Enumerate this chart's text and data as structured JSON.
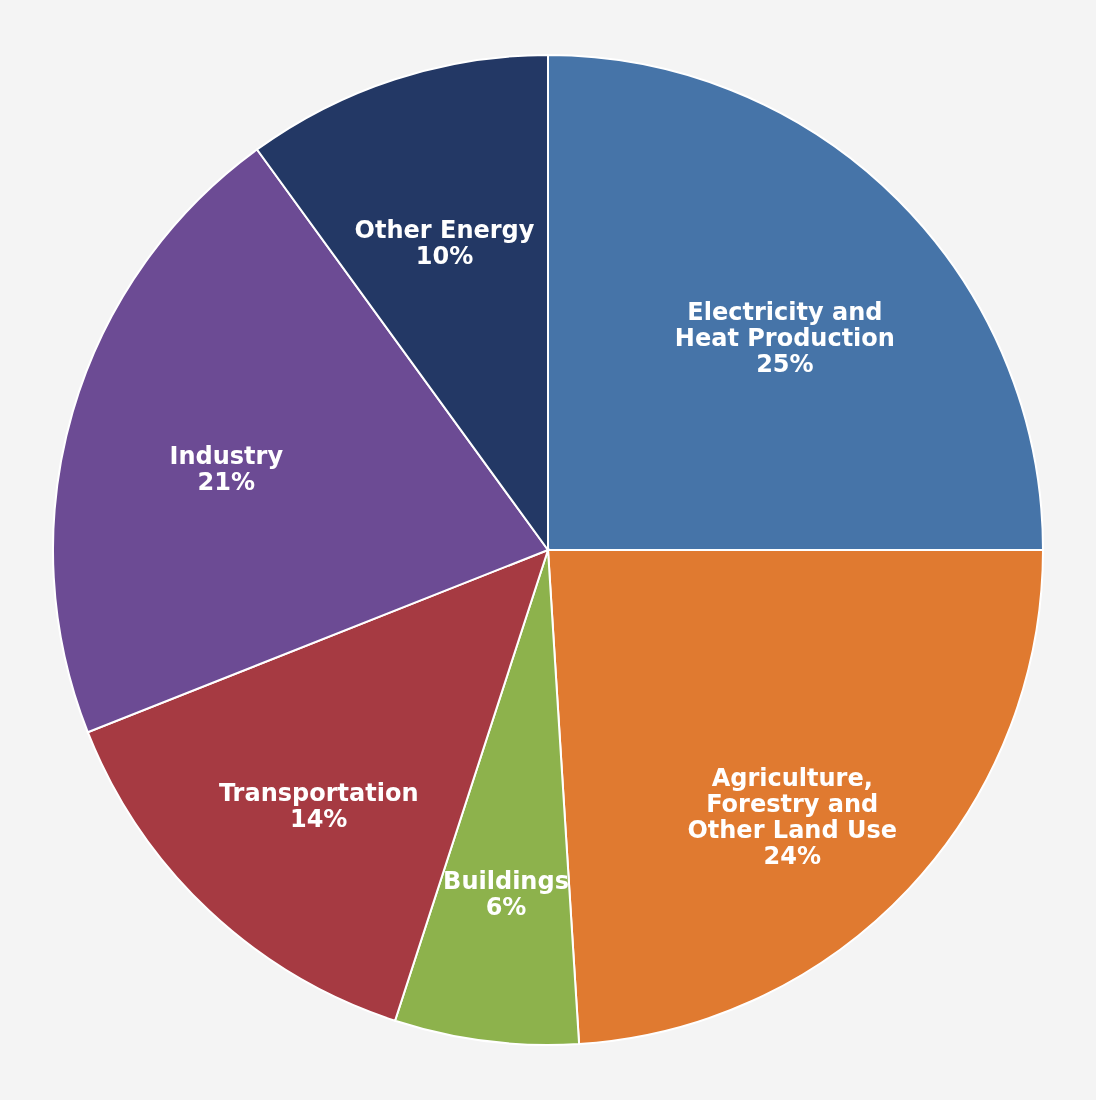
{
  "chart_data": {
    "type": "pie",
    "categories": [
      "Electricity and Heat Production",
      "Agriculture, Forestry and Other Land Use",
      "Buildings",
      "Transportation",
      "Industry",
      "Other Energy"
    ],
    "values": [
      25,
      24,
      6,
      14,
      21,
      10
    ],
    "colors": [
      "#4674a8",
      "#e07a30",
      "#8db24c",
      "#a63a42",
      "#6c4b94",
      "#233865"
    ],
    "value_labels": [
      "25%",
      "24%",
      "6%",
      "14%",
      "21%",
      "10%"
    ],
    "legend": false
  }
}
